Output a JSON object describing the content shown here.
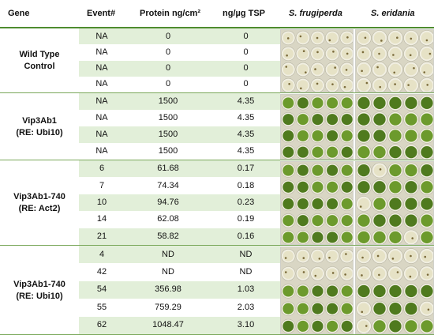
{
  "headers": {
    "gene": "Gene",
    "event": "Event#",
    "protein": "Protein ng/cm²",
    "ng_tsp": "ng/µg TSP",
    "sf": "S. frugiperda",
    "se": "S. eridania"
  },
  "groups": [
    {
      "gene_line1": "Wild Type",
      "gene_line2": "Control",
      "rows": [
        {
          "event": "NA",
          "protein": "0",
          "ng": "0"
        },
        {
          "event": "NA",
          "protein": "0",
          "ng": "0"
        },
        {
          "event": "NA",
          "protein": "0",
          "ng": "0"
        },
        {
          "event": "NA",
          "protein": "0",
          "ng": "0"
        }
      ]
    },
    {
      "gene_line1": "Vip3Ab1",
      "gene_line2": "(RE: Ubi10)",
      "rows": [
        {
          "event": "NA",
          "protein": "1500",
          "ng": "4.35"
        },
        {
          "event": "NA",
          "protein": "1500",
          "ng": "4.35"
        },
        {
          "event": "NA",
          "protein": "1500",
          "ng": "4.35"
        },
        {
          "event": "NA",
          "protein": "1500",
          "ng": "4.35"
        }
      ]
    },
    {
      "gene_line1": "Vip3Ab1-740",
      "gene_line2": "(RE: Act2)",
      "rows": [
        {
          "event": "6",
          "protein": "61.68",
          "ng": "0.17"
        },
        {
          "event": "7",
          "protein": "74.34",
          "ng": "0.18"
        },
        {
          "event": "10",
          "protein": "94.76",
          "ng": "0.23"
        },
        {
          "event": "14",
          "protein": "62.08",
          "ng": "0.19"
        },
        {
          "event": "21",
          "protein": "58.82",
          "ng": "0.16"
        }
      ]
    },
    {
      "gene_line1": "Vip3Ab1-740",
      "gene_line2": "(RE: Ubi10)",
      "rows": [
        {
          "event": "4",
          "protein": "ND",
          "ng": "ND"
        },
        {
          "event": "42",
          "protein": "ND",
          "ng": "ND"
        },
        {
          "event": "54",
          "protein": "356.98",
          "ng": "1.03"
        },
        {
          "event": "55",
          "protein": "759.29",
          "ng": "2.03"
        },
        {
          "event": "62",
          "protein": "1048.47",
          "ng": "3.10"
        }
      ]
    }
  ],
  "colors": {
    "band_shade": "#e2efd9",
    "separator": "#7aa85a",
    "leaf_green": "#6c9a2c",
    "leaf_dark": "#4f7a1e",
    "well_pale": "#e6e2c6",
    "plate_bg": "#d9d6c4"
  }
}
